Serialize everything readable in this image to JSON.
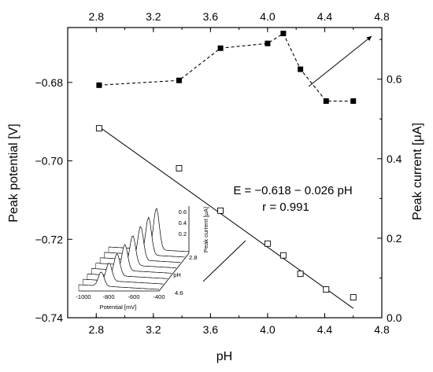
{
  "chart_data": {
    "type": "scatter",
    "xlabel": "pH",
    "ylabel_left": "Peak potential [V]",
    "ylabel_right": "Peak current [μA]",
    "xlim": [
      2.6,
      4.8
    ],
    "xticks": [
      "2.8",
      "3.2",
      "3.6",
      "4.0",
      "4.4",
      "4.8"
    ],
    "xticks_top": [
      "2.8",
      "3.2",
      "3.6",
      "4.0",
      "4.4",
      "4.8"
    ],
    "ylim_left": [
      -0.74,
      -0.666
    ],
    "yticks_left": [
      "-0.68",
      "-0.70",
      "-0.72",
      "-0.74"
    ],
    "ylim_right": [
      0.0,
      0.73
    ],
    "yticks_right": [
      "0.6",
      "0.4",
      "0.2",
      "0.0"
    ],
    "series": [
      {
        "axis": "left",
        "marker": "open-square",
        "x": [
          2.82,
          3.38,
          3.67,
          4.0,
          4.11,
          4.23,
          4.41,
          4.6
        ],
        "y": [
          -0.6917,
          -0.7019,
          -0.7127,
          -0.7211,
          -0.7241,
          -0.7288,
          -0.7328,
          -0.7348
        ]
      },
      {
        "axis": "right",
        "marker": "filled-square",
        "line": "dashed",
        "x": [
          2.82,
          3.38,
          3.67,
          4.0,
          4.11,
          4.23,
          4.41,
          4.6
        ],
        "y": [
          0.585,
          0.597,
          0.678,
          0.69,
          0.715,
          0.625,
          0.545,
          0.545
        ]
      }
    ],
    "fit_line": {
      "intercept": -0.618,
      "slope": -0.026,
      "x_range": [
        2.82,
        4.6
      ]
    },
    "annotations": {
      "equation": "E = −0.618 − 0.026 pH",
      "r_value": "r = 0.991"
    },
    "inset": {
      "xlabel": "Potential [mV]",
      "xticks": [
        "-1000",
        "-800",
        "-600",
        "-400"
      ],
      "zlabel": "Peak current [μA]",
      "zticks": [
        "0.6",
        "0.4",
        "0.2"
      ],
      "depth_label": "pH",
      "depth_ticks": [
        "2.8",
        "4.6"
      ]
    }
  }
}
